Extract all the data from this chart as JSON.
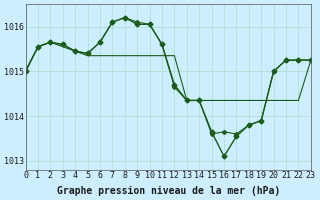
{
  "background_color": "#cceeff",
  "grid_color": "#aaddcc",
  "line_color": "#1a5c1a",
  "title": "Graphe pression niveau de la mer (hPa)",
  "xlabel_fontsize": 7,
  "ylabel_fontsize": 7,
  "title_fontsize": 7,
  "xlim": [
    0,
    23
  ],
  "ylim": [
    1012.8,
    1016.5
  ],
  "yticks": [
    1013,
    1014,
    1015,
    1016
  ],
  "xticks": [
    0,
    1,
    2,
    3,
    4,
    5,
    6,
    7,
    8,
    9,
    10,
    11,
    12,
    13,
    14,
    15,
    16,
    17,
    18,
    19,
    20,
    21,
    22,
    23
  ],
  "series": [
    {
      "x": [
        0,
        1,
        2,
        3,
        4,
        5,
        6,
        7,
        8,
        9,
        10,
        11,
        12,
        13,
        14,
        15,
        16,
        17,
        18,
        19,
        20,
        21,
        22,
        23
      ],
      "y": [
        1015.0,
        1015.55,
        1015.65,
        1015.6,
        1015.45,
        1015.4,
        1015.65,
        1016.1,
        1016.2,
        1016.05,
        1016.05,
        1015.6,
        1014.7,
        1014.35,
        1014.35,
        1013.65,
        1013.1,
        1013.55,
        1013.8,
        1013.9,
        1015.0,
        1015.25,
        1015.25,
        1015.25
      ],
      "marker": "D",
      "markersize": 2.5,
      "linewidth": 1.0
    },
    {
      "x": [
        0,
        1,
        2,
        3,
        4,
        5,
        6,
        7,
        8,
        9,
        10,
        11,
        12,
        13,
        14,
        15,
        16,
        17,
        18,
        19,
        20,
        21,
        22,
        23
      ],
      "y": [
        1015.0,
        1015.55,
        1015.65,
        1015.55,
        1015.45,
        1015.35,
        1015.35,
        1015.35,
        1015.35,
        1015.35,
        1015.35,
        1015.35,
        1015.35,
        1014.35,
        1014.35,
        1014.35,
        1014.35,
        1014.35,
        1014.35,
        1014.35,
        1014.35,
        1014.35,
        1014.35,
        1015.25
      ],
      "marker": null,
      "markersize": 0,
      "linewidth": 0.8
    },
    {
      "x": [
        0,
        1,
        2,
        3,
        4,
        5,
        6,
        7,
        8,
        9,
        10,
        11,
        12,
        13,
        14,
        15,
        16,
        17,
        18,
        19,
        20,
        21,
        22,
        23
      ],
      "y": [
        1015.0,
        1015.55,
        1015.65,
        1015.6,
        1015.45,
        1015.4,
        1015.65,
        1016.1,
        1016.2,
        1016.1,
        1016.05,
        1015.6,
        1014.65,
        1014.35,
        1014.35,
        1013.6,
        1013.65,
        1013.6,
        1013.8,
        1013.9,
        1015.0,
        1015.25,
        1015.25,
        1015.25
      ],
      "marker": "D",
      "markersize": 2.0,
      "linewidth": 0.8
    }
  ]
}
